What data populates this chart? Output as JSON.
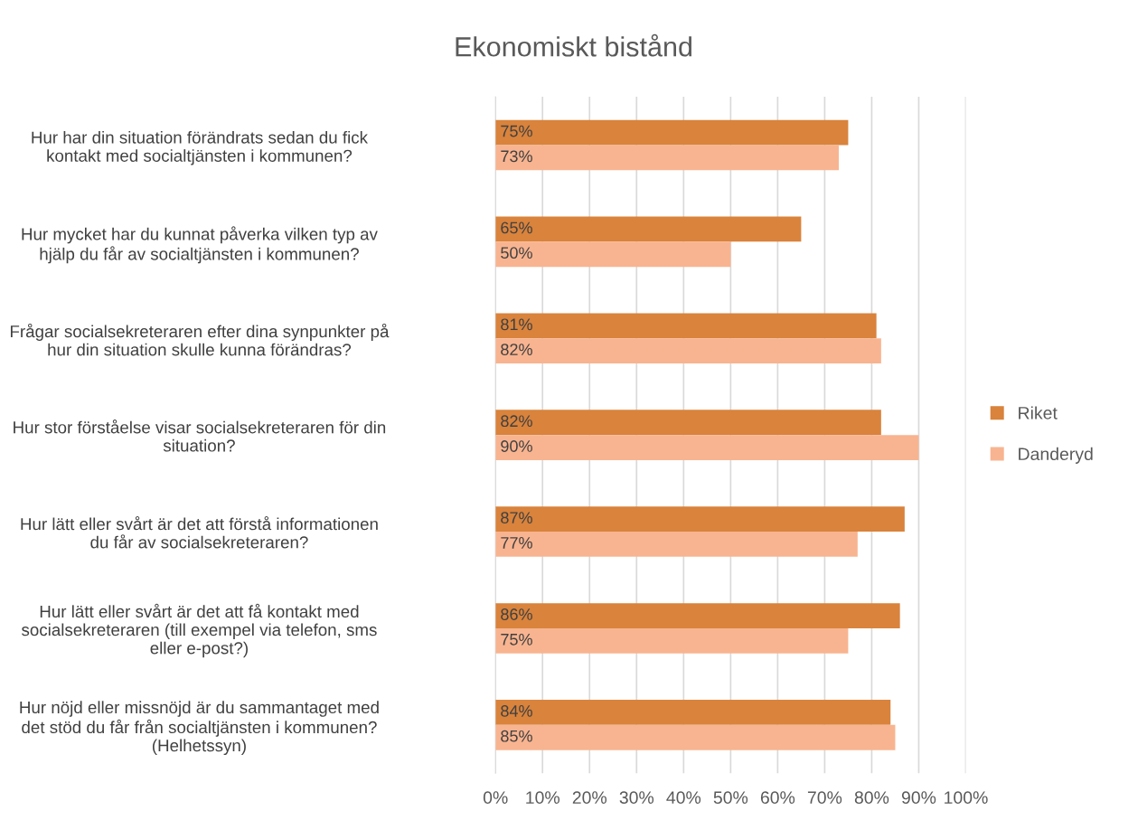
{
  "chart_data": {
    "type": "bar",
    "orientation": "horizontal",
    "title": "Ekonomiskt bistånd",
    "categories": [
      "Hur har din situation förändrats sedan du fick\nkontakt med socialtjänsten i kommunen?",
      "Hur mycket har du kunnat påverka vilken typ av\nhjälp du får av socialtjänsten i kommunen?",
      "Frågar socialsekreteraren efter dina synpunkter på\nhur din situation skulle kunna förändras?",
      "Hur stor förståelse visar socialsekreteraren för din\nsituation?",
      "Hur lätt eller svårt är det att förstå informationen\ndu får av socialsekreteraren?",
      "Hur lätt eller svårt är det att få kontakt med\nsocialsekreteraren (till exempel via telefon, sms\neller e-post?)",
      "Hur nöjd eller missnöjd är du sammantaget med\ndet stöd du får från socialtjänsten i kommunen?\n(Helhetssyn)"
    ],
    "series": [
      {
        "name": "Riket",
        "color": "#d9833c",
        "values": [
          75,
          65,
          81,
          82,
          87,
          86,
          84
        ],
        "value_labels": [
          "75%",
          "65%",
          "81%",
          "82%",
          "87%",
          "86%",
          "84%"
        ]
      },
      {
        "name": "Danderyd",
        "color": "#f8b490",
        "values": [
          73,
          50,
          82,
          90,
          77,
          75,
          85
        ],
        "value_labels": [
          "73%",
          "50%",
          "82%",
          "90%",
          "77%",
          "75%",
          "85%"
        ]
      }
    ],
    "xlim": [
      0,
      100
    ],
    "xticks": [
      {
        "value": 0,
        "label": "0%"
      },
      {
        "value": 10,
        "label": "10%"
      },
      {
        "value": 20,
        "label": "20%"
      },
      {
        "value": 30,
        "label": "30%"
      },
      {
        "value": 40,
        "label": "40%"
      },
      {
        "value": 50,
        "label": "50%"
      },
      {
        "value": 60,
        "label": "60%"
      },
      {
        "value": 70,
        "label": "70%"
      },
      {
        "value": 80,
        "label": "80%"
      },
      {
        "value": 90,
        "label": "90%"
      },
      {
        "value": 100,
        "label": "100%"
      }
    ],
    "grid": "x",
    "legend": "right"
  }
}
